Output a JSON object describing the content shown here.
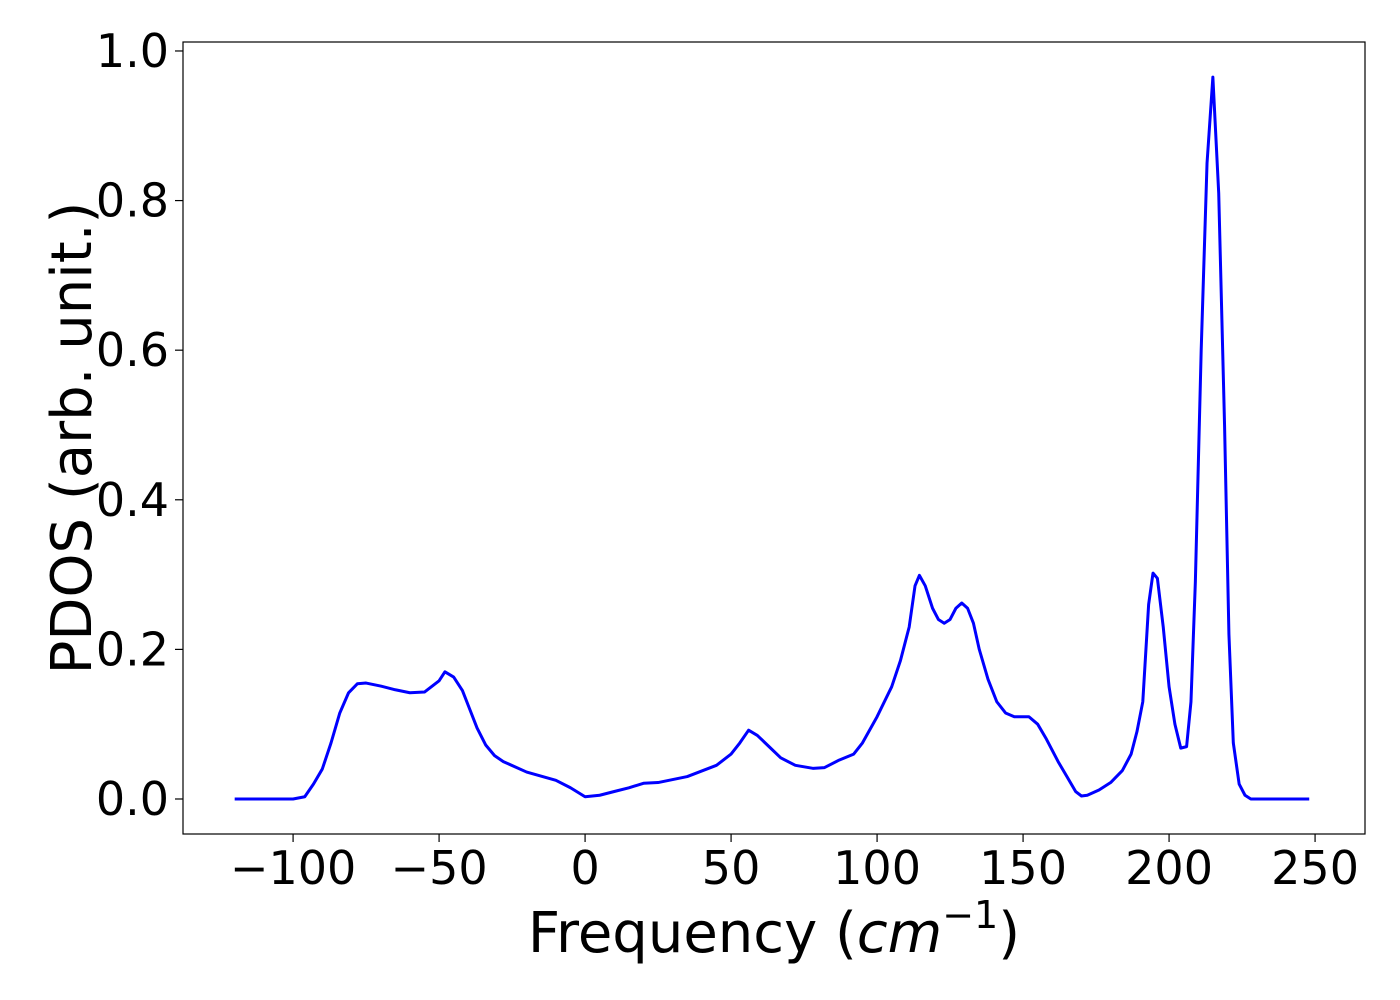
{
  "chart_data": {
    "type": "line",
    "x_label": [
      "Frequency (",
      "cm",
      "−1",
      ")"
    ],
    "y_label": "PDOS (arb. unit.)",
    "color": "#0000ff",
    "xlim": [
      -137.7,
      267.1
    ],
    "ylim": [
      -0.0468,
      1.012
    ],
    "xticks": [
      {
        "value": -100,
        "label": "−100"
      },
      {
        "value": -50,
        "label": "−50"
      },
      0,
      50,
      100,
      150,
      200,
      250
    ],
    "yticks": [
      {
        "value": 0,
        "label": "0.0"
      },
      0.2,
      0.4,
      0.6,
      0.8,
      {
        "value": 1,
        "label": "1.0"
      }
    ],
    "x": [
      -120,
      -100,
      -96,
      -93,
      -90,
      -87,
      -84,
      -81,
      -78,
      -75,
      -70,
      -65,
      -60,
      -55,
      -50,
      -48,
      -45,
      -42,
      -40,
      -37,
      -34,
      -31,
      -28,
      -20,
      -10,
      -5,
      0,
      5,
      10,
      15,
      20,
      25,
      35,
      45,
      50,
      53,
      56,
      59,
      63,
      67,
      72,
      78,
      82,
      87,
      92,
      95,
      100,
      105,
      108,
      111,
      113,
      114.5,
      116.5,
      119,
      121,
      123,
      125,
      127,
      129,
      131,
      133,
      135,
      138,
      141,
      144,
      147,
      152,
      155,
      158,
      162,
      165,
      168,
      170,
      172,
      176,
      180,
      184,
      187,
      189,
      191,
      193,
      194.5,
      196,
      198,
      200,
      202,
      204,
      206,
      207.5,
      209,
      211,
      213,
      215,
      217,
      219,
      220.5,
      222,
      224,
      226,
      228,
      235,
      248
    ],
    "values": [
      0,
      0,
      0.003,
      0.02,
      0.04,
      0.075,
      0.115,
      0.142,
      0.154,
      0.155,
      0.151,
      0.146,
      0.142,
      0.143,
      0.158,
      0.17,
      0.163,
      0.145,
      0.125,
      0.095,
      0.072,
      0.058,
      0.05,
      0.036,
      0.025,
      0.015,
      0.003,
      0.005,
      0.01,
      0.015,
      0.021,
      0.022,
      0.03,
      0.045,
      0.06,
      0.075,
      0.092,
      0.085,
      0.07,
      0.055,
      0.045,
      0.041,
      0.042,
      0.052,
      0.06,
      0.075,
      0.11,
      0.15,
      0.185,
      0.23,
      0.285,
      0.299,
      0.285,
      0.255,
      0.24,
      0.235,
      0.24,
      0.255,
      0.262,
      0.255,
      0.235,
      0.2,
      0.16,
      0.13,
      0.115,
      0.11,
      0.11,
      0.1,
      0.08,
      0.05,
      0.03,
      0.01,
      0.004,
      0.005,
      0.012,
      0.022,
      0.038,
      0.06,
      0.09,
      0.13,
      0.26,
      0.302,
      0.295,
      0.23,
      0.15,
      0.1,
      0.068,
      0.07,
      0.13,
      0.29,
      0.6,
      0.85,
      0.965,
      0.81,
      0.5,
      0.22,
      0.075,
      0.02,
      0.005,
      0,
      0,
      0
    ]
  }
}
